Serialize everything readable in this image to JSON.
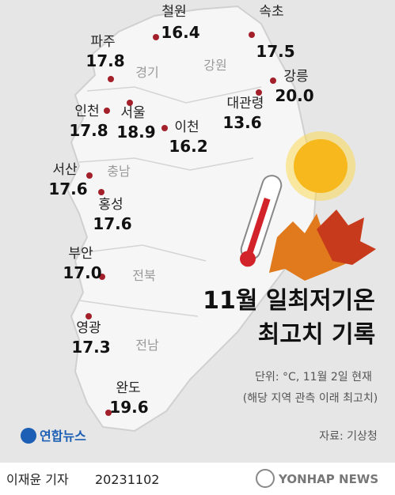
{
  "title_lines": [
    "11월 일최저기온",
    "최고치 기록"
  ],
  "cities": [
    {
      "name": "철원",
      "value": "16.4"
    },
    {
      "name": "속초",
      "value": "17.5"
    },
    {
      "name": "파주",
      "value": "17.8"
    },
    {
      "name": "강릉",
      "value": "20.0"
    },
    {
      "name": "대관령",
      "value": "13.6"
    },
    {
      "name": "인천",
      "value": "17.8"
    },
    {
      "name": "서울",
      "value": "18.9"
    },
    {
      "name": "이천",
      "value": "16.2"
    },
    {
      "name": "서산",
      "value": "17.6"
    },
    {
      "name": "홍성",
      "value": "17.6"
    },
    {
      "name": "부안",
      "value": "17.0"
    },
    {
      "name": "영광",
      "value": "17.3"
    },
    {
      "name": "완도",
      "value": "19.6"
    }
  ],
  "regions": [
    "경기",
    "강원",
    "충남",
    "전북",
    "전남"
  ],
  "unit_note": "단위: °C, 11월 2일 현재",
  "record_note": "(해당 지역 관측 이래 최고치)",
  "source": "자료: 기상청",
  "logo": "연합뉴스",
  "reporter": "이재윤 기자",
  "date": "20231102",
  "agency": "YONHAP NEWS"
}
